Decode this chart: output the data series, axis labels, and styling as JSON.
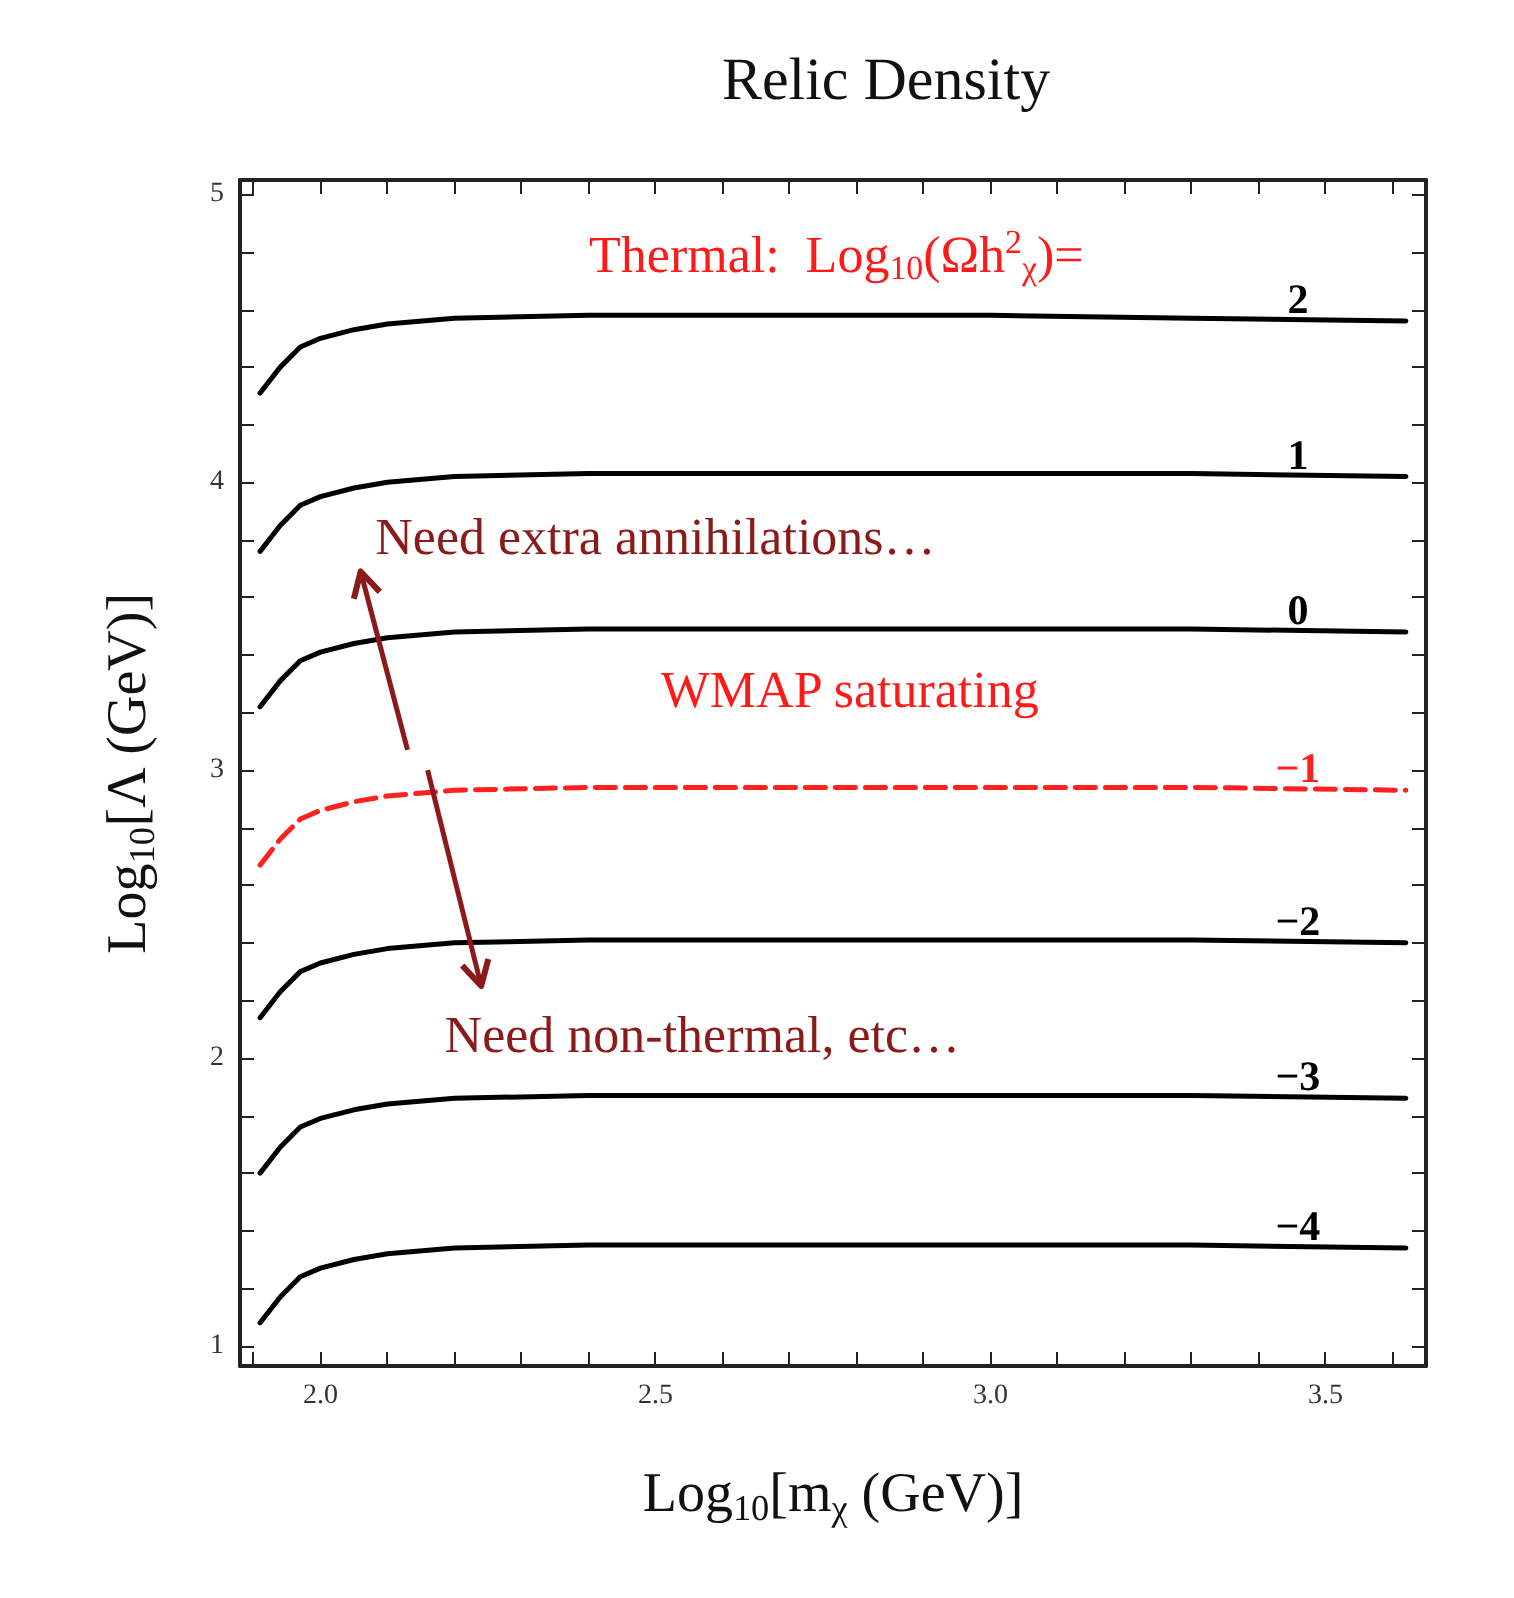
{
  "chart_data": {
    "type": "line",
    "title": "Relic Density",
    "xlabel": "Log$_{10}$[m$_{χ}$ (GeV)]",
    "ylabel": "Log$_{10}$[Λ (GeV)]",
    "x": [
      1.91,
      1.94,
      1.97,
      2.0,
      2.05,
      2.1,
      2.2,
      2.4,
      2.7,
      3.0,
      3.3,
      3.62
    ],
    "series": [
      {
        "name": "2",
        "color": "#000000",
        "values": [
          4.31,
          4.4,
          4.47,
          4.5,
          4.53,
          4.55,
          4.57,
          4.58,
          4.58,
          4.58,
          4.57,
          4.56
        ]
      },
      {
        "name": "1",
        "color": "#000000",
        "values": [
          3.76,
          3.85,
          3.92,
          3.95,
          3.98,
          4.0,
          4.02,
          4.03,
          4.03,
          4.03,
          4.03,
          4.02
        ]
      },
      {
        "name": "0",
        "color": "#000000",
        "values": [
          3.22,
          3.31,
          3.38,
          3.41,
          3.44,
          3.46,
          3.48,
          3.49,
          3.49,
          3.49,
          3.49,
          3.48
        ]
      },
      {
        "name": "−1",
        "color": "#ff2020",
        "line_style": "dashed",
        "values": [
          2.67,
          2.76,
          2.83,
          2.86,
          2.89,
          2.91,
          2.93,
          2.94,
          2.94,
          2.94,
          2.94,
          2.93
        ]
      },
      {
        "name": "−2",
        "color": "#000000",
        "values": [
          2.14,
          2.23,
          2.3,
          2.33,
          2.36,
          2.38,
          2.4,
          2.41,
          2.41,
          2.41,
          2.41,
          2.4
        ]
      },
      {
        "name": "−3",
        "color": "#000000",
        "values": [
          1.6,
          1.69,
          1.76,
          1.79,
          1.82,
          1.84,
          1.86,
          1.87,
          1.87,
          1.87,
          1.87,
          1.86
        ]
      },
      {
        "name": "−4",
        "color": "#000000",
        "values": [
          1.08,
          1.17,
          1.24,
          1.27,
          1.3,
          1.32,
          1.34,
          1.35,
          1.35,
          1.35,
          1.35,
          1.34
        ]
      }
    ],
    "annotations": [
      "Thermal:  Log$_{10}$(Ωh$^{2}$$_{χ}$)=",
      "WMAP saturating",
      "Need extra annihilations…",
      "Need non-thermal, etc…"
    ],
    "xlim": [
      1.88,
      3.65
    ],
    "ylim": [
      0.93,
      5.05
    ],
    "xticks": [
      {
        "value": 2.0,
        "label": "2.0"
      },
      {
        "value": 2.5,
        "label": "2.5"
      },
      {
        "value": 3.0,
        "label": "3.0"
      },
      {
        "value": 3.5,
        "label": "3.5"
      }
    ],
    "yticks": [
      1,
      2,
      3,
      4,
      5
    ],
    "grid": false,
    "marker": "none",
    "line_style": "solid"
  }
}
